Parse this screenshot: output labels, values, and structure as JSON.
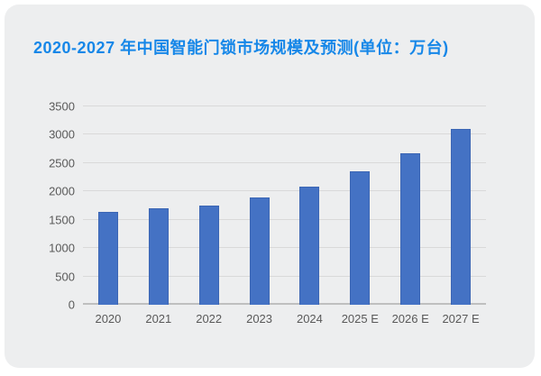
{
  "title": "2020-2027 年中国智能门锁市场规模及预测(单位：万台)",
  "colors": {
    "page_bg": "#FFFFFF",
    "card_bg": "#EDEEEF",
    "title": "#1687E8",
    "bar_fill": "#4472C4",
    "bar_border": "#3C66B4",
    "gridline": "#D9D9D9",
    "axis_line": "#BFBFBF",
    "axis_text": "#595959"
  },
  "chart_data": {
    "type": "bar",
    "title": "2020-2027 年中国智能门锁市场规模及预测(单位：万台)",
    "unit": "万台",
    "categories": [
      "2020",
      "2021",
      "2022",
      "2023",
      "2024",
      "2025 E",
      "2026 E",
      "2027 E"
    ],
    "values": [
      1640,
      1700,
      1750,
      1900,
      2090,
      2350,
      2680,
      3100
    ],
    "xlabel": "",
    "ylabel": "",
    "ylim": [
      0,
      3500
    ],
    "yticks": [
      0,
      500,
      1000,
      1500,
      2000,
      2500,
      3000,
      3500
    ],
    "grid": true,
    "legend": false,
    "bar_color": "#4472C4"
  }
}
